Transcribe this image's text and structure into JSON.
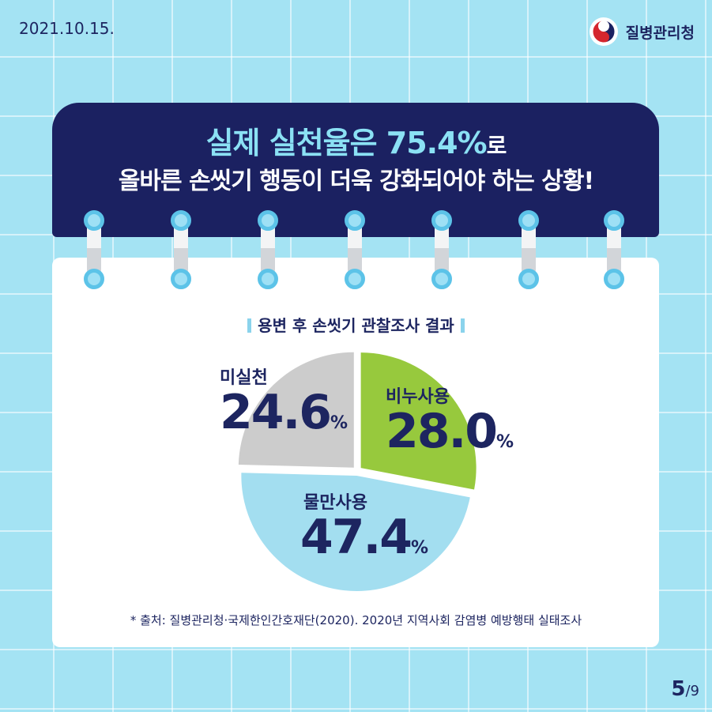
{
  "date": "2021.10.15.",
  "org": "질병관리청",
  "headline": {
    "line1_main": "실제 실천율은 75.4%",
    "line1_suffix": "로",
    "line2": "올바른 손씻기 행동이 더욱 강화되어야 하는 상황!"
  },
  "subtitle": "용변 후 손씻기 관찰조사 결과",
  "chart_data": {
    "type": "pie",
    "categories": [
      "비누사용",
      "물만사용",
      "미실천"
    ],
    "values": [
      28.0,
      47.4,
      24.6
    ],
    "value_labels": [
      "28.0",
      "47.4",
      "24.6"
    ],
    "unit": "%",
    "colors": [
      "#97c93d",
      "#a3def0",
      "#cccccc"
    ]
  },
  "source": "* 출처: 질병관리청·국제한인간호재단(2020). 2020년 지역사회 감염병 예방행태 실태조사",
  "page": {
    "current": "5",
    "total": "/9"
  },
  "colors": {
    "navy": "#1b2161",
    "background": "#a4e3f3",
    "ring": "#5cc3e8"
  }
}
